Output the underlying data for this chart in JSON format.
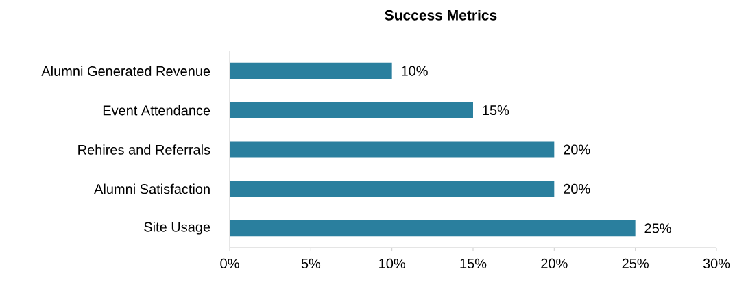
{
  "chart_data": {
    "type": "bar",
    "orientation": "horizontal",
    "title": "Success Metrics",
    "categories": [
      "Alumni Generated Revenue",
      "Event Attendance",
      "Rehires and Referrals",
      "Alumni Satisfaction",
      "Site Usage"
    ],
    "values": [
      10,
      15,
      20,
      20,
      25
    ],
    "value_labels": [
      "10%",
      "15%",
      "20%",
      "20%",
      "25%"
    ],
    "color": "#2a7f9e",
    "xlim": [
      0,
      30
    ],
    "xticks": [
      {
        "value": 0,
        "label": "0%"
      },
      {
        "value": 5,
        "label": "5%"
      },
      {
        "value": 10,
        "label": "10%"
      },
      {
        "value": 15,
        "label": "15%"
      },
      {
        "value": 20,
        "label": "20%"
      },
      {
        "value": 25,
        "label": "25%"
      },
      {
        "value": 30,
        "label": "30%"
      }
    ],
    "grid": false
  }
}
